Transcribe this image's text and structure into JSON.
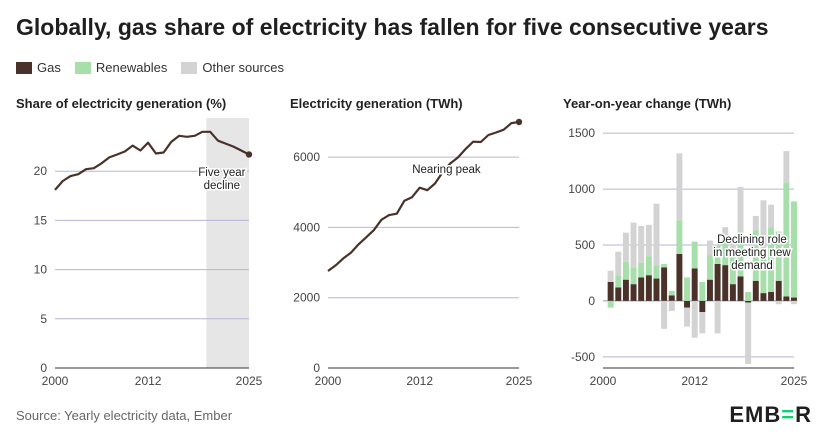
{
  "title": "Globally, gas share of electricity has fallen for five consecutive years",
  "legend": [
    {
      "label": "Gas",
      "color": "#4a322b"
    },
    {
      "label": "Renewables",
      "color": "#a6dfa9"
    },
    {
      "label": "Other sources",
      "color": "#d3d3d3"
    }
  ],
  "source": "Source: Yearly electricity data, Ember",
  "logo": {
    "pre": "EMB",
    "mark": "=",
    "post": "R"
  },
  "chart_data": [
    {
      "type": "line",
      "title": "Share of electricity generation (%)",
      "x": [
        2000,
        2001,
        2002,
        2003,
        2004,
        2005,
        2006,
        2007,
        2008,
        2009,
        2010,
        2011,
        2012,
        2013,
        2014,
        2015,
        2016,
        2017,
        2018,
        2019,
        2020,
        2021,
        2022,
        2023,
        2024,
        2025
      ],
      "values": [
        18.1,
        19.0,
        19.5,
        19.7,
        20.2,
        20.3,
        20.8,
        21.4,
        21.7,
        22.0,
        22.6,
        22.1,
        22.9,
        21.8,
        21.9,
        23.0,
        23.6,
        23.5,
        23.6,
        24.0,
        24.0,
        23.1,
        22.8,
        22.5,
        22.1,
        21.7
      ],
      "color": "#4a322b",
      "xlim": [
        2000,
        2025
      ],
      "ylim": [
        0,
        25
      ],
      "yticks": [
        0,
        5,
        10,
        15,
        20
      ],
      "xticks": [
        2000,
        2012,
        2025
      ],
      "shaded_region": [
        2019.5,
        2025
      ],
      "annotation": {
        "text": [
          "Five year",
          "decline"
        ],
        "x": 2021.5,
        "y": 19.5
      }
    },
    {
      "type": "line",
      "title": "Electricity generation (TWh)",
      "x": [
        2000,
        2001,
        2002,
        2003,
        2004,
        2005,
        2006,
        2007,
        2008,
        2009,
        2010,
        2011,
        2012,
        2013,
        2014,
        2015,
        2016,
        2017,
        2018,
        2019,
        2020,
        2021,
        2022,
        2023,
        2024,
        2025
      ],
      "values": [
        2760,
        2920,
        3120,
        3280,
        3520,
        3720,
        3920,
        4220,
        4350,
        4390,
        4760,
        4860,
        5130,
        5060,
        5250,
        5570,
        5820,
        5990,
        6230,
        6440,
        6430,
        6630,
        6700,
        6780,
        6970,
        7000
      ],
      "color": "#4a322b",
      "xlim": [
        2000,
        2025
      ],
      "ylim": [
        0,
        7000
      ],
      "yticks": [
        0,
        2000,
        4000,
        6000
      ],
      "xticks": [
        2000,
        2012,
        2025
      ],
      "annotation": {
        "text": [
          "Nearing peak"
        ],
        "x": 2015.5,
        "y": 5550
      }
    },
    {
      "type": "bar",
      "title": "Year-on-year change (TWh)",
      "stacked": true,
      "categories": [
        2001,
        2002,
        2003,
        2004,
        2005,
        2006,
        2007,
        2008,
        2009,
        2010,
        2011,
        2012,
        2013,
        2014,
        2015,
        2016,
        2017,
        2018,
        2019,
        2020,
        2021,
        2022,
        2023,
        2024,
        2025
      ],
      "series": [
        {
          "name": "Gas",
          "color": "#4a322b",
          "values": [
            170,
            120,
            190,
            150,
            210,
            230,
            200,
            300,
            50,
            420,
            -60,
            290,
            -100,
            190,
            330,
            320,
            150,
            220,
            -15,
            180,
            70,
            80,
            180,
            40,
            30
          ]
        },
        {
          "name": "Renewables",
          "color": "#a6dfa9",
          "values": [
            -60,
            110,
            160,
            150,
            130,
            170,
            120,
            30,
            40,
            300,
            210,
            240,
            170,
            220,
            170,
            230,
            270,
            400,
            80,
            450,
            380,
            580,
            440,
            1020,
            860
          ]
        },
        {
          "name": "Other sources",
          "color": "#d3d3d3",
          "values": [
            100,
            210,
            260,
            400,
            330,
            280,
            550,
            -250,
            -90,
            600,
            -170,
            -330,
            -190,
            130,
            -290,
            110,
            160,
            400,
            -550,
            130,
            450,
            200,
            -30,
            280,
            -30
          ]
        }
      ],
      "ylim": [
        -600,
        1600
      ],
      "yticks": [
        -500,
        0,
        500,
        1000,
        1500
      ],
      "xticks": [
        2000,
        2012,
        2025
      ],
      "annotation": {
        "text": [
          "Declining role",
          "in meeting new",
          "demand"
        ],
        "x": 2019.5,
        "y": 520
      }
    }
  ]
}
